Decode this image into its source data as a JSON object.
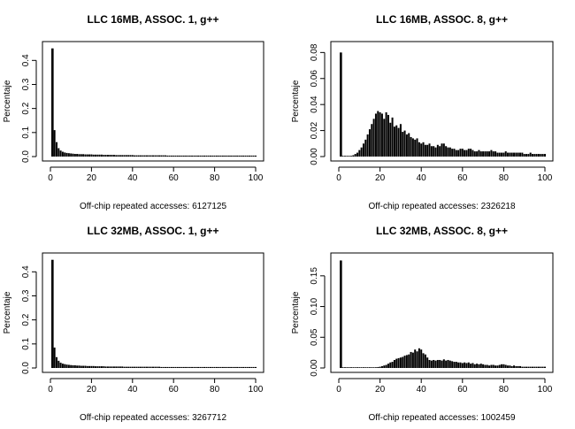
{
  "chart_data": [
    {
      "type": "bar",
      "title": "LLC 16MB, ASSOC. 1, g++",
      "xlabel": "Off-chip repeated accesses: 6127125",
      "ylabel": "Percentaje",
      "xlim": [
        0,
        100
      ],
      "ylim": [
        0,
        0.46
      ],
      "x_ticks": [
        0,
        20,
        40,
        60,
        80,
        100
      ],
      "y_ticks": [
        0.0,
        0.1,
        0.2,
        0.3,
        0.4
      ],
      "y_tick_labels": [
        "0.0",
        "0.1",
        "0.2",
        "0.3",
        "0.4"
      ],
      "x": [
        1,
        2,
        3,
        4,
        5,
        6,
        7,
        8,
        9,
        10,
        11,
        12,
        13,
        14,
        15,
        16,
        17,
        18,
        19,
        20,
        21,
        22,
        23,
        24,
        25,
        26,
        27,
        28,
        29,
        30,
        31,
        32,
        33,
        34,
        35,
        36,
        37,
        38,
        39,
        40,
        41,
        42,
        43,
        44,
        45,
        46,
        47,
        48,
        49,
        50,
        51,
        52,
        53,
        54,
        55,
        56,
        57,
        58,
        59,
        60,
        61,
        62,
        63,
        64,
        65,
        66,
        67,
        68,
        69,
        70,
        71,
        72,
        73,
        74,
        75,
        76,
        77,
        78,
        79,
        80,
        81,
        82,
        83,
        84,
        85,
        86,
        87,
        88,
        89,
        90,
        91,
        92,
        93,
        94,
        95,
        96,
        97,
        98,
        99,
        100
      ],
      "values": [
        0.45,
        0.11,
        0.06,
        0.035,
        0.025,
        0.02,
        0.017,
        0.015,
        0.014,
        0.013,
        0.012,
        0.011,
        0.011,
        0.01,
        0.01,
        0.01,
        0.009,
        0.009,
        0.009,
        0.009,
        0.008,
        0.008,
        0.008,
        0.008,
        0.008,
        0.007,
        0.007,
        0.007,
        0.007,
        0.007,
        0.007,
        0.006,
        0.006,
        0.006,
        0.006,
        0.006,
        0.006,
        0.006,
        0.006,
        0.006,
        0.005,
        0.005,
        0.005,
        0.005,
        0.005,
        0.005,
        0.005,
        0.005,
        0.005,
        0.005,
        0.005,
        0.005,
        0.005,
        0.005,
        0.005,
        0.005,
        0.004,
        0.004,
        0.004,
        0.004,
        0.004,
        0.004,
        0.004,
        0.004,
        0.004,
        0.004,
        0.004,
        0.004,
        0.004,
        0.004,
        0.004,
        0.004,
        0.004,
        0.004,
        0.004,
        0.004,
        0.004,
        0.004,
        0.004,
        0.004,
        0.004,
        0.004,
        0.004,
        0.004,
        0.004,
        0.004,
        0.004,
        0.004,
        0.004,
        0.004,
        0.004,
        0.004,
        0.004,
        0.004,
        0.004,
        0.004,
        0.004,
        0.004,
        0.004,
        0.004
      ]
    },
    {
      "type": "bar",
      "title": "LLC 16MB, ASSOC. 8, g++",
      "xlabel": "Off-chip repeated accesses: 2326218",
      "ylabel": "Percentaje",
      "xlim": [
        0,
        100
      ],
      "ylim": [
        0,
        0.085
      ],
      "x_ticks": [
        0,
        20,
        40,
        60,
        80,
        100
      ],
      "y_ticks": [
        0.0,
        0.02,
        0.04,
        0.06,
        0.08
      ],
      "y_tick_labels": [
        "0.00",
        "0.02",
        "0.04",
        "0.06",
        "0.08"
      ],
      "x": [
        1,
        2,
        3,
        4,
        5,
        6,
        7,
        8,
        9,
        10,
        11,
        12,
        13,
        14,
        15,
        16,
        17,
        18,
        19,
        20,
        21,
        22,
        23,
        24,
        25,
        26,
        27,
        28,
        29,
        30,
        31,
        32,
        33,
        34,
        35,
        36,
        37,
        38,
        39,
        40,
        41,
        42,
        43,
        44,
        45,
        46,
        47,
        48,
        49,
        50,
        51,
        52,
        53,
        54,
        55,
        56,
        57,
        58,
        59,
        60,
        61,
        62,
        63,
        64,
        65,
        66,
        67,
        68,
        69,
        70,
        71,
        72,
        73,
        74,
        75,
        76,
        77,
        78,
        79,
        80,
        81,
        82,
        83,
        84,
        85,
        86,
        87,
        88,
        89,
        90,
        91,
        92,
        93,
        94,
        95,
        96,
        97,
        98,
        99,
        100
      ],
      "values": [
        0.08,
        0.0,
        0.0,
        0.0,
        0.0,
        0.0005,
        0.001,
        0.002,
        0.003,
        0.005,
        0.007,
        0.01,
        0.013,
        0.017,
        0.021,
        0.025,
        0.029,
        0.033,
        0.035,
        0.034,
        0.033,
        0.029,
        0.034,
        0.032,
        0.026,
        0.03,
        0.023,
        0.024,
        0.022,
        0.025,
        0.019,
        0.02,
        0.017,
        0.018,
        0.015,
        0.014,
        0.013,
        0.014,
        0.011,
        0.01,
        0.011,
        0.009,
        0.009,
        0.01,
        0.008,
        0.008,
        0.007,
        0.009,
        0.008,
        0.01,
        0.01,
        0.008,
        0.007,
        0.007,
        0.006,
        0.006,
        0.005,
        0.005,
        0.006,
        0.006,
        0.005,
        0.005,
        0.006,
        0.006,
        0.005,
        0.004,
        0.004,
        0.005,
        0.004,
        0.004,
        0.004,
        0.004,
        0.004,
        0.005,
        0.004,
        0.004,
        0.003,
        0.003,
        0.003,
        0.003,
        0.004,
        0.003,
        0.003,
        0.003,
        0.003,
        0.003,
        0.003,
        0.003,
        0.003,
        0.002,
        0.002,
        0.002,
        0.003,
        0.002,
        0.002,
        0.002,
        0.002,
        0.002,
        0.002,
        0.002
      ]
    },
    {
      "type": "bar",
      "title": "LLC 32MB, ASSOC. 1, g++",
      "xlabel": "Off-chip repeated accesses: 3267712",
      "ylabel": "Percentaje",
      "xlim": [
        0,
        100
      ],
      "ylim": [
        0,
        0.46
      ],
      "x_ticks": [
        0,
        20,
        40,
        60,
        80,
        100
      ],
      "y_ticks": [
        0.0,
        0.1,
        0.2,
        0.3,
        0.4
      ],
      "y_tick_labels": [
        "0.0",
        "0.1",
        "0.2",
        "0.3",
        "0.4"
      ],
      "x": [
        1,
        2,
        3,
        4,
        5,
        6,
        7,
        8,
        9,
        10,
        11,
        12,
        13,
        14,
        15,
        16,
        17,
        18,
        19,
        20,
        21,
        22,
        23,
        24,
        25,
        26,
        27,
        28,
        29,
        30,
        31,
        32,
        33,
        34,
        35,
        36,
        37,
        38,
        39,
        40,
        41,
        42,
        43,
        44,
        45,
        46,
        47,
        48,
        49,
        50,
        51,
        52,
        53,
        54,
        55,
        56,
        57,
        58,
        59,
        60,
        61,
        62,
        63,
        64,
        65,
        66,
        67,
        68,
        69,
        70,
        71,
        72,
        73,
        74,
        75,
        76,
        77,
        78,
        79,
        80,
        81,
        82,
        83,
        84,
        85,
        86,
        87,
        88,
        89,
        90,
        91,
        92,
        93,
        94,
        95,
        96,
        97,
        98,
        99,
        100
      ],
      "values": [
        0.45,
        0.085,
        0.045,
        0.03,
        0.022,
        0.018,
        0.016,
        0.014,
        0.013,
        0.012,
        0.011,
        0.011,
        0.01,
        0.01,
        0.009,
        0.009,
        0.009,
        0.008,
        0.008,
        0.008,
        0.008,
        0.007,
        0.007,
        0.007,
        0.007,
        0.007,
        0.006,
        0.006,
        0.006,
        0.006,
        0.006,
        0.006,
        0.006,
        0.006,
        0.006,
        0.005,
        0.005,
        0.005,
        0.005,
        0.005,
        0.005,
        0.005,
        0.005,
        0.005,
        0.005,
        0.005,
        0.005,
        0.005,
        0.005,
        0.005,
        0.005,
        0.005,
        0.005,
        0.004,
        0.004,
        0.004,
        0.004,
        0.004,
        0.004,
        0.004,
        0.004,
        0.004,
        0.004,
        0.004,
        0.004,
        0.004,
        0.004,
        0.004,
        0.004,
        0.004,
        0.004,
        0.004,
        0.004,
        0.004,
        0.004,
        0.004,
        0.004,
        0.004,
        0.004,
        0.004,
        0.004,
        0.004,
        0.004,
        0.004,
        0.004,
        0.004,
        0.004,
        0.004,
        0.004,
        0.004,
        0.004,
        0.004,
        0.004,
        0.004,
        0.004,
        0.004,
        0.004,
        0.004,
        0.004,
        0.004
      ]
    },
    {
      "type": "bar",
      "title": "LLC 32MB, ASSOC. 8, g++",
      "xlabel": "Off-chip repeated accesses: 1002459",
      "ylabel": "Percentaje",
      "xlim": [
        0,
        100
      ],
      "ylim": [
        0,
        0.18
      ],
      "x_ticks": [
        0,
        20,
        40,
        60,
        80,
        100
      ],
      "y_ticks": [
        0.0,
        0.05,
        0.1,
        0.15
      ],
      "y_tick_labels": [
        "0.00",
        "0.05",
        "0.10",
        "0.15"
      ],
      "x": [
        1,
        2,
        3,
        4,
        5,
        6,
        7,
        8,
        9,
        10,
        11,
        12,
        13,
        14,
        15,
        16,
        17,
        18,
        19,
        20,
        21,
        22,
        23,
        24,
        25,
        26,
        27,
        28,
        29,
        30,
        31,
        32,
        33,
        34,
        35,
        36,
        37,
        38,
        39,
        40,
        41,
        42,
        43,
        44,
        45,
        46,
        47,
        48,
        49,
        50,
        51,
        52,
        53,
        54,
        55,
        56,
        57,
        58,
        59,
        60,
        61,
        62,
        63,
        64,
        65,
        66,
        67,
        68,
        69,
        70,
        71,
        72,
        73,
        74,
        75,
        76,
        77,
        78,
        79,
        80,
        81,
        82,
        83,
        84,
        85,
        86,
        87,
        88,
        89,
        90,
        91,
        92,
        93,
        94,
        95,
        96,
        97,
        98,
        99,
        100
      ],
      "values": [
        0.175,
        0.0,
        0.0,
        0.0,
        0.0,
        0.0,
        0.0,
        0.0,
        0.0,
        0.0,
        0.0,
        0.0,
        0.0,
        0.0,
        0.0,
        0.0005,
        0.001,
        0.001,
        0.0015,
        0.002,
        0.003,
        0.004,
        0.005,
        0.007,
        0.009,
        0.01,
        0.013,
        0.015,
        0.016,
        0.017,
        0.018,
        0.02,
        0.021,
        0.022,
        0.026,
        0.025,
        0.03,
        0.027,
        0.032,
        0.03,
        0.024,
        0.022,
        0.017,
        0.013,
        0.012,
        0.013,
        0.012,
        0.013,
        0.013,
        0.012,
        0.014,
        0.012,
        0.013,
        0.012,
        0.011,
        0.01,
        0.01,
        0.009,
        0.009,
        0.008,
        0.009,
        0.008,
        0.009,
        0.007,
        0.008,
        0.006,
        0.007,
        0.006,
        0.007,
        0.006,
        0.005,
        0.005,
        0.004,
        0.005,
        0.005,
        0.004,
        0.004,
        0.005,
        0.006,
        0.006,
        0.005,
        0.004,
        0.004,
        0.003,
        0.004,
        0.003,
        0.003,
        0.003,
        0.002,
        0.002,
        0.002,
        0.002,
        0.002,
        0.002,
        0.002,
        0.002,
        0.002,
        0.002,
        0.002,
        0.002
      ]
    }
  ]
}
